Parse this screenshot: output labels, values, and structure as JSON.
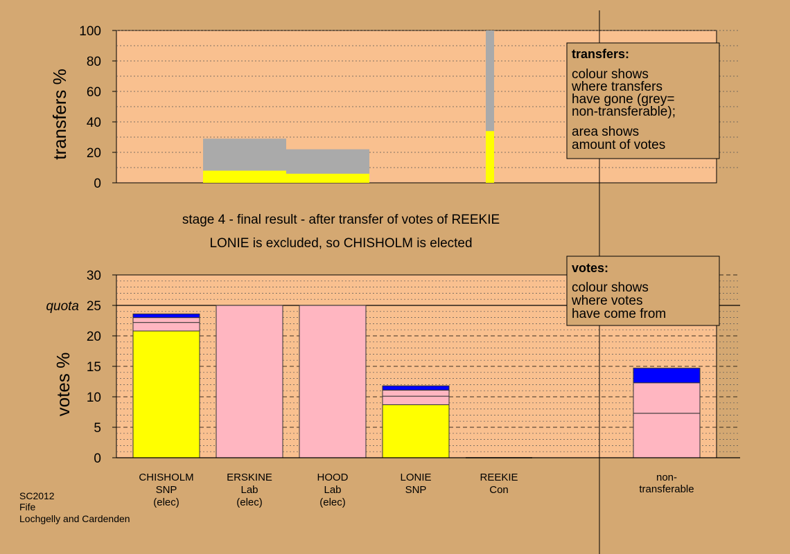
{
  "colors": {
    "page_background": "#d4a872",
    "plot_background": "#f9c08f",
    "snp": "#ffff00",
    "lab": "#ffb6c1",
    "con": "#0000ff",
    "non_transferable": "#aaaaaa",
    "grid": "#000000"
  },
  "caption": {
    "line1": "stage 4 - final result - after transfer of votes of REEKIE",
    "line2": "LONIE is excluded, so CHISHOLM is elected"
  },
  "footer": {
    "line1": "SC2012",
    "line2": "Fife",
    "line3": "Lochgelly and Cardenden"
  },
  "chart_data": [
    {
      "type": "bar",
      "ylabel": "transfers %",
      "ylim": [
        0,
        100
      ],
      "yticks": [
        "0",
        "20",
        "40",
        "60",
        "80",
        "100"
      ],
      "legend": {
        "title": "transfers:",
        "lines": [
          "colour shows",
          "where transfers",
          "have gone (grey=",
          "non-transferable);"
        ],
        "lines2": [
          "area shows",
          "amount of votes"
        ]
      },
      "bars": [
        {
          "x_from": 1.0,
          "x_to": 2.0,
          "segments": [
            {
              "party": "snp",
              "value": 8
            },
            {
              "party": "non_transferable",
              "value": 21
            }
          ]
        },
        {
          "x_from": 2.0,
          "x_to": 3.0,
          "segments": [
            {
              "party": "snp",
              "value": 6
            },
            {
              "party": "non_transferable",
              "value": 16
            }
          ]
        },
        {
          "x_from": 4.4,
          "x_to": 4.5,
          "segments": [
            {
              "party": "snp",
              "value": 34
            },
            {
              "party": "non_transferable",
              "value": 66
            }
          ]
        }
      ]
    },
    {
      "type": "bar",
      "ylabel": "votes %",
      "ylim": [
        0,
        30
      ],
      "yticks": [
        "0",
        "5",
        "10",
        "15",
        "20",
        "25",
        "30"
      ],
      "quota": {
        "label": "quota",
        "value": 25
      },
      "legend": {
        "title": "votes:",
        "lines": [
          "colour shows",
          "where votes",
          "have come from"
        ]
      },
      "categories": [
        {
          "name": "CHISHOLM",
          "party": "SNP",
          "note": "(elec)"
        },
        {
          "name": "ERSKINE",
          "party": "Lab",
          "note": "(elec)"
        },
        {
          "name": "HOOD",
          "party": "Lab",
          "note": "(elec)"
        },
        {
          "name": "LONIE",
          "party": "SNP",
          "note": ""
        },
        {
          "name": "REEKIE",
          "party": "Con",
          "note": ""
        },
        {
          "name": "non-",
          "party": "transferable",
          "note": ""
        }
      ],
      "stacks": [
        [
          {
            "party": "snp",
            "value": 20.8
          },
          {
            "party": "lab",
            "value": 1.4
          },
          {
            "party": "lab",
            "value": 0.8
          },
          {
            "party": "con",
            "value": 0.6
          }
        ],
        [
          {
            "party": "lab",
            "value": 25.0
          }
        ],
        [
          {
            "party": "lab",
            "value": 25.0
          }
        ],
        [
          {
            "party": "snp",
            "value": 8.7
          },
          {
            "party": "lab",
            "value": 1.4
          },
          {
            "party": "lab",
            "value": 1.0
          },
          {
            "party": "con",
            "value": 0.7
          }
        ],
        [],
        [
          {
            "party": "lab",
            "value": 7.3
          },
          {
            "party": "lab",
            "value": 5.0
          },
          {
            "party": "con",
            "value": 2.4
          }
        ]
      ]
    }
  ]
}
